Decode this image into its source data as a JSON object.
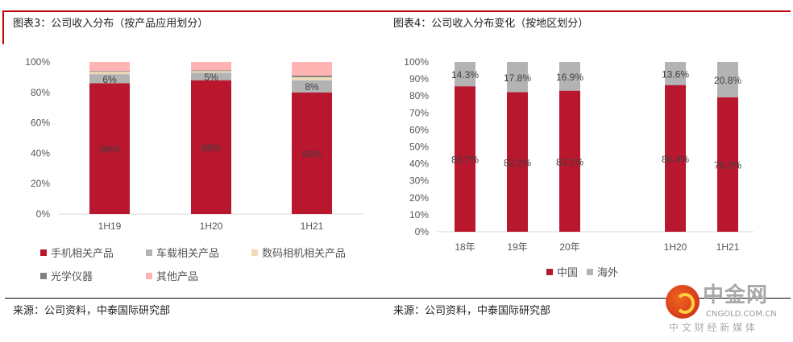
{
  "figure3": {
    "title": "图表3：公司收入分布（按产品应用划分）",
    "source": "来源：公司资料，中泰国际研究部"
  },
  "figure4": {
    "title": "图表4：公司收入分布变化（按地区划分）",
    "source": "来源：公司资料，中泰国际研究部"
  },
  "logo": {
    "name": "中金网",
    "domain": "CNGOLD.COM.CN",
    "slogan": "中 文 财 经 新 媒 体"
  },
  "chart_data": [
    {
      "type": "bar",
      "stacked": true,
      "title": "公司收入分布（按产品应用划分）",
      "categories": [
        "1H19",
        "1H20",
        "1H21"
      ],
      "ylim": [
        0,
        100
      ],
      "yticks": [
        "0%",
        "20%",
        "40%",
        "60%",
        "80%",
        "100%"
      ],
      "legend_position": "bottom",
      "series": [
        {
          "name": "手机相关产品",
          "color": "#b8172e",
          "values": [
            86,
            88,
            80
          ],
          "labels": [
            "86%",
            "88%",
            "80%"
          ]
        },
        {
          "name": "车载相关产品",
          "color": "#b3b3b3",
          "values": [
            6,
            5,
            8
          ],
          "labels": [
            "6%",
            "5%",
            "8%"
          ]
        },
        {
          "name": "数码相机相关产品",
          "color": "#efdcb6",
          "values": [
            1.5,
            1,
            2
          ],
          "labels": [
            "",
            "",
            ""
          ]
        },
        {
          "name": "光学仪器",
          "color": "#7f7f7f",
          "values": [
            0.5,
            0.5,
            1
          ],
          "labels": [
            "",
            "",
            ""
          ]
        },
        {
          "name": "其他产品",
          "color": "#ffb3b3",
          "values": [
            6,
            5.5,
            9
          ],
          "labels": [
            "",
            "",
            ""
          ]
        }
      ]
    },
    {
      "type": "bar",
      "stacked": true,
      "title": "公司收入分布变化（按地区划分）",
      "categories": [
        "18年",
        "19年",
        "20年",
        "",
        "1H20",
        "1H21"
      ],
      "ylim": [
        0,
        100
      ],
      "yticks": [
        "0%",
        "10%",
        "20%",
        "30%",
        "40%",
        "50%",
        "60%",
        "70%",
        "80%",
        "90%",
        "100%"
      ],
      "legend_position": "bottom",
      "series": [
        {
          "name": "中国",
          "color": "#b8172e",
          "values": [
            85.7,
            82.2,
            83.1,
            null,
            86.4,
            79.2
          ],
          "labels": [
            "85.7%",
            "82.2%",
            "83.1%",
            "",
            "86.4%",
            "79.2%"
          ]
        },
        {
          "name": "海外",
          "color": "#b3b3b3",
          "values": [
            14.3,
            17.8,
            16.9,
            null,
            13.6,
            20.8
          ],
          "labels": [
            "14.3%",
            "17.8%",
            "16.9%",
            "",
            "13.6%",
            "20.8%"
          ]
        }
      ]
    }
  ]
}
